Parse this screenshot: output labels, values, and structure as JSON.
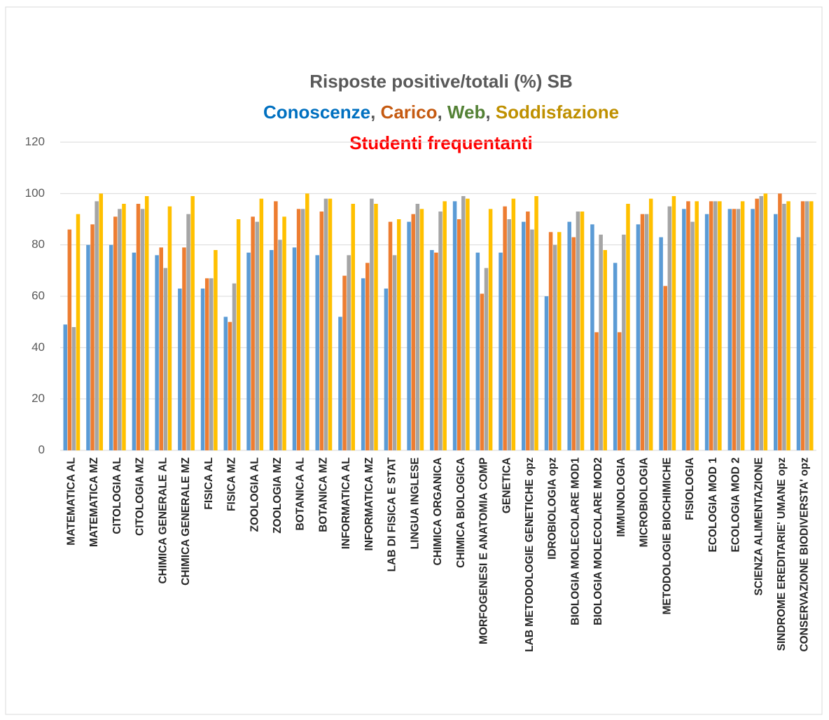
{
  "chart_data": {
    "type": "bar",
    "title": "Risposte positive/totali (%)  SB",
    "legend_separator": ", ",
    "note": "Studenti frequentanti",
    "categories": [
      "MATEMATICA AL",
      "MATEMATICA MZ",
      "CITOLOGIA AL",
      "CITOLOGIA MZ",
      "CHIMICA GENERALE AL",
      "CHIMICA GENERALE MZ",
      "FISICA AL",
      "FISICA MZ",
      "ZOOLOGIA AL",
      "ZOOLOGIA MZ",
      "BOTANICA AL",
      "BOTANICA MZ",
      "INFORMATICA AL",
      "INFORMATICA MZ",
      "LAB DI FISICA E STAT",
      "LINGUA INGLESE",
      "CHIMICA ORGANICA",
      "CHIMICA BIOLOGICA",
      "MORFOGENESI E ANATOMIA COMP",
      "GENETICA",
      "LAB METODOLOGIE GENETICHE opz",
      "IDROBIOLOGIA  opz",
      "BIOLOGIA MOLECOLARE MOD1",
      "BIOLOGIA MOLECOLARE MOD2",
      "IMMUNOLOGIA",
      "MICROBIOLOGIA",
      "METODOLOGIE BIOCHIMICHE",
      "FISIOLOGIA",
      "ECOLOGIA MOD 1",
      "ECOLOGIA MOD 2",
      "SCIENZA ALIMENTAZIONE",
      "SINDROME EREDITARIE' UMANE opz",
      "CONSERVAZIONE BIODIVERSTA' opz"
    ],
    "series": [
      {
        "name": "Conoscenze",
        "color": "#5b9bd5",
        "legend_color": "#0070c0",
        "values": [
          49,
          80,
          80,
          77,
          76,
          63,
          63,
          52,
          77,
          78,
          79,
          76,
          52,
          67,
          63,
          89,
          78,
          97,
          77,
          77,
          89,
          60,
          89,
          88,
          73,
          88,
          83,
          94,
          92,
          94,
          94,
          92,
          83
        ]
      },
      {
        "name": "Carico",
        "color": "#ed7d31",
        "legend_color": "#c55a11",
        "values": [
          86,
          88,
          91,
          96,
          79,
          79,
          67,
          50,
          91,
          97,
          94,
          93,
          68,
          73,
          89,
          92,
          77,
          90,
          61,
          95,
          93,
          85,
          83,
          46,
          46,
          92,
          64,
          97,
          97,
          94,
          98,
          100,
          97
        ]
      },
      {
        "name": "Web",
        "color": "#a5a5a5",
        "legend_color": "#538135",
        "values": [
          48,
          97,
          94,
          94,
          71,
          92,
          67,
          65,
          89,
          82,
          94,
          98,
          76,
          98,
          76,
          96,
          93,
          99,
          71,
          90,
          86,
          80,
          93,
          84,
          84,
          92,
          95,
          89,
          97,
          94,
          99,
          96,
          97
        ]
      },
      {
        "name": "Soddisfazione",
        "color": "#ffc000",
        "legend_color": "#bf9000",
        "values": [
          92,
          100,
          96,
          99,
          95,
          99,
          78,
          90,
          98,
          91,
          100,
          98,
          96,
          96,
          90,
          94,
          97,
          98,
          94,
          98,
          99,
          85,
          93,
          78,
          96,
          98,
          99,
          97,
          97,
          97,
          100,
          97,
          97
        ]
      }
    ],
    "ylim": [
      0,
      120
    ],
    "yticks": [
      0,
      20,
      40,
      60,
      80,
      100,
      120
    ],
    "grid": true
  }
}
